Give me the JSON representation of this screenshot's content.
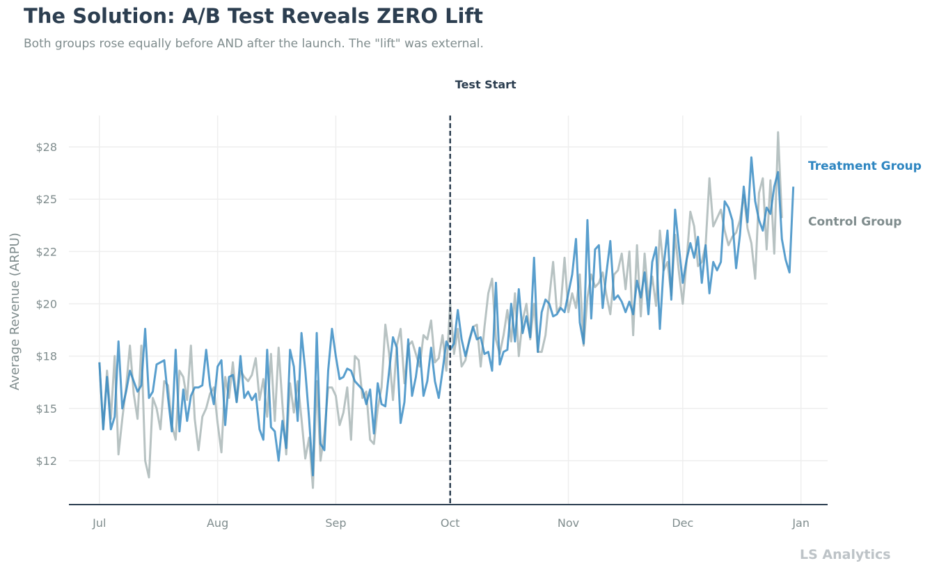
{
  "header": {
    "title": "The Solution: A/B Test Reveals ZERO Lift",
    "subtitle": "Both groups rose equally before AND after the launch. The \"lift\" was external."
  },
  "credit": "LS Analytics",
  "colors": {
    "treatment": "#2e86c1",
    "control": "#b3bfbf",
    "test_line": "#2c3e50",
    "grid": "#eeeeee",
    "text_muted": "#7f8c8d"
  },
  "chart_data": {
    "type": "line",
    "title": "The Solution: A/B Test Reveals ZERO Lift",
    "subtitle": "Both groups rose equally before AND after the launch. The \"lift\" was external.",
    "xlabel": "",
    "ylabel": "Average Revenue (ARPU)",
    "x_start": "2023-07-01",
    "x_end": "2023-12-31",
    "x_range": [
      "2023-06-23",
      "2024-01-08"
    ],
    "ylim": [
      10.4,
      29.0
    ],
    "x_ticks": [
      {
        "label": "Jul",
        "date": "2023-07-01"
      },
      {
        "label": "Aug",
        "date": "2023-08-01"
      },
      {
        "label": "Sep",
        "date": "2023-09-01"
      },
      {
        "label": "Oct",
        "date": "2023-10-01"
      },
      {
        "label": "Nov",
        "date": "2023-11-01"
      },
      {
        "label": "Dec",
        "date": "2023-12-01"
      },
      {
        "label": "Jan",
        "date": "2024-01-01"
      }
    ],
    "y_ticks": [
      {
        "label": "$12",
        "value": 12.5
      },
      {
        "label": "$15",
        "value": 15.0
      },
      {
        "label": "$18",
        "value": 17.5
      },
      {
        "label": "$20",
        "value": 20.0
      },
      {
        "label": "$22",
        "value": 22.5
      },
      {
        "label": "$25",
        "value": 25.0
      },
      {
        "label": "$28",
        "value": 27.5
      }
    ],
    "grid": true,
    "annotation": {
      "label": "Test Start",
      "date": "2023-10-01"
    },
    "series": [
      {
        "name": "Treatment Group",
        "color": "#2e86c1",
        "values": [
          17.2,
          14.0,
          16.5,
          14.0,
          14.6,
          18.2,
          15.0,
          15.8,
          16.8,
          16.3,
          15.8,
          16.1,
          18.8,
          15.5,
          15.8,
          17.1,
          17.2,
          17.3,
          15.5,
          13.9,
          17.8,
          13.9,
          15.9,
          14.4,
          15.6,
          16.0,
          16.0,
          16.1,
          17.8,
          16.1,
          15.2,
          17.0,
          17.3,
          14.2,
          16.5,
          16.6,
          15.3,
          17.5,
          15.5,
          15.8,
          15.4,
          15.7,
          14.0,
          13.5,
          17.8,
          14.1,
          13.9,
          12.5,
          14.4,
          13.1,
          17.8,
          17.0,
          14.4,
          18.6,
          16.8,
          14.5,
          11.8,
          18.6,
          13.3,
          13.0,
          16.8,
          18.8,
          17.5,
          16.4,
          16.5,
          16.9,
          16.8,
          16.3,
          16.1,
          15.9,
          15.2,
          15.9,
          13.8,
          16.2,
          15.2,
          15.1,
          16.8,
          18.4,
          17.9,
          14.3,
          15.3,
          18.3,
          15.6,
          16.5,
          17.9,
          15.6,
          16.3,
          17.9,
          16.3,
          15.5,
          16.8,
          18.2,
          17.8,
          18.1,
          19.7,
          18.3,
          17.5,
          18.2,
          18.9,
          18.3,
          18.4,
          17.6,
          17.7,
          16.8,
          21.0,
          17.1,
          17.7,
          17.8,
          20.0,
          18.2,
          20.7,
          18.6,
          19.4,
          18.4,
          22.2,
          17.7,
          19.6,
          20.2,
          20.0,
          19.4,
          19.5,
          19.8,
          19.6,
          20.5,
          21.4,
          23.1,
          19.1,
          18.1,
          24.0,
          19.3,
          22.6,
          22.8,
          19.8,
          21.5,
          23.0,
          20.2,
          20.4,
          20.1,
          19.6,
          20.1,
          19.5,
          21.1,
          20.3,
          21.5,
          19.5,
          22.0,
          22.7,
          18.8,
          21.8,
          23.5,
          20.2,
          24.5,
          22.7,
          21.0,
          22.1,
          22.9,
          22.2,
          23.2,
          21.0,
          22.8,
          20.5,
          22.0,
          21.6,
          22.0,
          24.9,
          24.6,
          24.0,
          21.7,
          23.3,
          25.6,
          23.9,
          27.0,
          24.9,
          24.0,
          23.5,
          24.6,
          24.3,
          25.6,
          26.3,
          23.1,
          22.1,
          21.5,
          25.6
        ]
      },
      {
        "name": "Control Group",
        "color": "#b3bfbf",
        "values": [
          17.2,
          14.0,
          16.8,
          14.5,
          17.5,
          12.8,
          14.5,
          16.0,
          18.0,
          15.7,
          14.5,
          18.0,
          12.5,
          11.7,
          15.5,
          15.0,
          14.0,
          16.3,
          16.1,
          14.2,
          13.5,
          16.8,
          16.5,
          15.4,
          18.0,
          14.5,
          13.0,
          14.6,
          15.0,
          15.7,
          16.0,
          14.3,
          12.9,
          16.5,
          15.5,
          17.2,
          15.3,
          16.8,
          16.5,
          16.3,
          16.6,
          17.4,
          15.4,
          16.4,
          14.6,
          17.6,
          14.4,
          17.9,
          15.2,
          12.8,
          16.2,
          14.8,
          16.3,
          14.5,
          12.6,
          13.6,
          11.2,
          16.3,
          12.5,
          13.8,
          16.0,
          16.0,
          15.6,
          14.2,
          14.8,
          16.0,
          13.5,
          17.5,
          17.3,
          15.5,
          15.8,
          13.5,
          13.3,
          15.0,
          16.0,
          19.0,
          17.6,
          15.4,
          18.0,
          18.8,
          16.2,
          18.0,
          18.2,
          17.6,
          17.0,
          18.5,
          18.3,
          19.2,
          17.2,
          17.4,
          18.5,
          16.8,
          20.0,
          17.6,
          18.8,
          17.0,
          17.3,
          18.3,
          18.9,
          19.0,
          17.0,
          18.9,
          20.5,
          21.2,
          18.3,
          17.6,
          18.5,
          19.7,
          18.2,
          20.5,
          17.5,
          19.2,
          20.0,
          18.3,
          20.0,
          17.7,
          17.7,
          18.5,
          20.3,
          22.0,
          19.6,
          19.9,
          22.2,
          19.6,
          20.5,
          19.8,
          21.4,
          18.0,
          20.3,
          21.4,
          20.8,
          21.0,
          21.5,
          20.4,
          19.5,
          21.4,
          21.6,
          22.4,
          20.7,
          22.5,
          18.5,
          22.8,
          19.4,
          22.4,
          20.2,
          21.3,
          19.9,
          23.5,
          21.6,
          22.0,
          20.4,
          23.3,
          21.5,
          20.0,
          22.0,
          24.4,
          23.7,
          21.8,
          22.0,
          22.8,
          26.0,
          23.7,
          24.1,
          24.5,
          23.5,
          22.8,
          23.2,
          23.4,
          24.0,
          25.2,
          23.6,
          22.9,
          21.2,
          25.3,
          26.0,
          22.6,
          25.9,
          22.4,
          28.2,
          24.1
        ]
      }
    ]
  }
}
